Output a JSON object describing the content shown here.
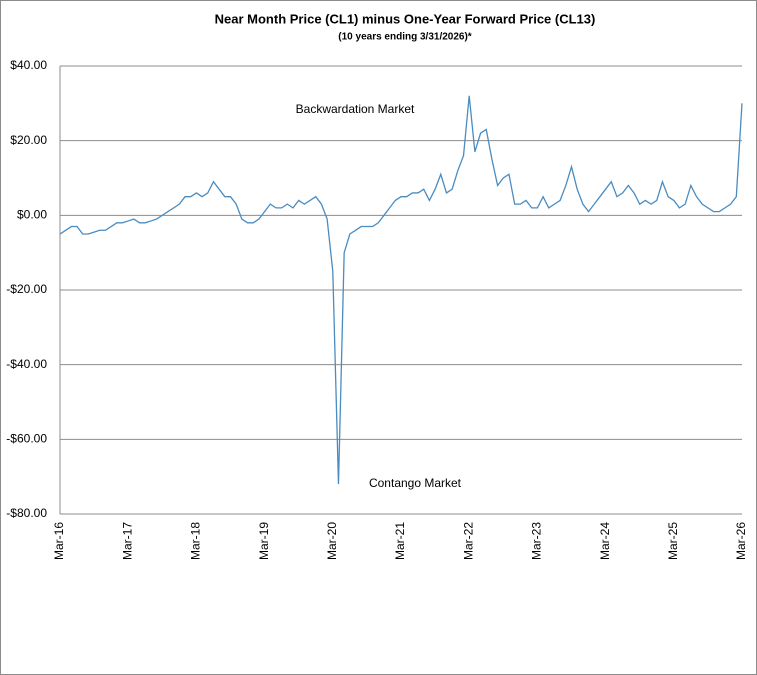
{
  "chart_data": {
    "type": "line",
    "title": "Near Month Price (CL1) minus One-Year Forward Price (CL13)",
    "subtitle": "(10 years ending  3/31/2026)*",
    "annotations": [
      "Backwardation Market",
      "Contango Market"
    ],
    "categories": [
      "Mar-16",
      null,
      null,
      null,
      null,
      null,
      null,
      null,
      null,
      null,
      null,
      null,
      "Mar-17",
      null,
      null,
      null,
      null,
      null,
      null,
      null,
      null,
      null,
      null,
      null,
      "Mar-18",
      null,
      null,
      null,
      null,
      null,
      null,
      null,
      null,
      null,
      null,
      null,
      "Mar-19",
      null,
      null,
      null,
      null,
      null,
      null,
      null,
      null,
      null,
      null,
      null,
      "Mar-20",
      null,
      null,
      null,
      null,
      null,
      null,
      null,
      null,
      null,
      null,
      null,
      "Mar-21",
      null,
      null,
      null,
      null,
      null,
      null,
      null,
      null,
      null,
      null,
      null,
      "Mar-22",
      null,
      null,
      null,
      null,
      null,
      null,
      null,
      null,
      null,
      null,
      null,
      "Mar-23",
      null,
      null,
      null,
      null,
      null,
      null,
      null,
      null,
      null,
      null,
      null,
      "Mar-24",
      null,
      null,
      null,
      null,
      null,
      null,
      null,
      null,
      null,
      null,
      null,
      "Mar-25",
      null,
      null,
      null,
      null,
      null,
      null,
      null,
      null,
      null,
      null,
      null,
      "Mar-26"
    ],
    "series": [
      {
        "color": "#4a8cc0",
        "values": [
          -5,
          -4,
          -3,
          -3,
          -5,
          -5,
          -4.5,
          -4,
          -4,
          -3,
          -2,
          -2,
          -1.5,
          -1,
          -2,
          -2,
          -1.5,
          -1,
          0,
          1,
          2,
          3,
          5,
          5,
          6,
          5,
          6,
          9,
          7,
          5,
          5,
          3,
          -1,
          -2,
          -2,
          -1,
          1,
          3,
          2,
          2,
          3,
          2,
          4,
          3,
          4,
          5,
          3,
          -1,
          -15,
          -72,
          -10,
          -5,
          -4,
          -3,
          -3,
          -3,
          -2,
          0,
          2,
          4,
          5,
          5,
          6,
          6,
          7,
          4,
          7,
          11,
          6,
          7,
          12,
          16,
          32,
          17,
          22,
          23,
          15,
          8,
          10,
          11,
          3,
          3,
          4,
          2,
          2,
          5,
          2,
          3,
          4,
          8,
          13,
          7,
          3,
          1,
          3,
          5,
          7,
          9,
          5,
          6,
          8,
          6,
          3,
          4,
          3,
          4,
          9,
          5,
          4,
          2,
          3,
          8,
          5,
          3,
          2,
          1,
          1,
          2,
          3,
          5,
          30
        ]
      }
    ],
    "ylim": [
      -80,
      40
    ],
    "yticks": [
      {
        "value": -80,
        "label": "-$80.00"
      },
      {
        "value": -60,
        "label": "-$60.00"
      },
      {
        "value": -40,
        "label": "-$40.00"
      },
      {
        "value": -20,
        "label": "-$20.00"
      },
      {
        "value": 0,
        "label": "$0.00"
      },
      {
        "value": 20,
        "label": "$20.00"
      },
      {
        "value": 40,
        "label": "$40.00"
      }
    ],
    "grid": true
  }
}
